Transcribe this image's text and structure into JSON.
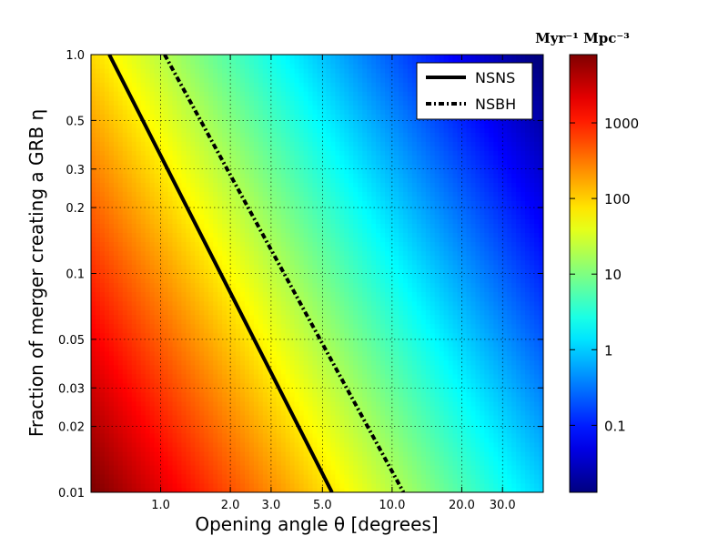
{
  "chart_data": {
    "type": "heatmap",
    "title": "",
    "xlabel": "Opening angle θ [degrees]",
    "ylabel": "Fraction of merger creating a GRB η",
    "x_scale": "log",
    "y_scale": "log",
    "xlim": [
      0.5,
      45
    ],
    "ylim": [
      0.01,
      1.0
    ],
    "x_ticks": [
      {
        "value": 1.0,
        "label": "1.0"
      },
      {
        "value": 2.0,
        "label": "2.0"
      },
      {
        "value": 3.0,
        "label": "3.0"
      },
      {
        "value": 5.0,
        "label": "5.0"
      },
      {
        "value": 10.0,
        "label": "10.0"
      },
      {
        "value": 20.0,
        "label": "20.0"
      },
      {
        "value": 30.0,
        "label": "30.0"
      }
    ],
    "y_ticks": [
      {
        "value": 0.01,
        "label": "0.01"
      },
      {
        "value": 0.02,
        "label": "0.02"
      },
      {
        "value": 0.03,
        "label": "0.03"
      },
      {
        "value": 0.05,
        "label": "0.05"
      },
      {
        "value": 0.1,
        "label": "0.1"
      },
      {
        "value": 0.2,
        "label": "0.2"
      },
      {
        "value": 0.3,
        "label": "0.3"
      },
      {
        "value": 0.5,
        "label": "0.5"
      },
      {
        "value": 1.0,
        "label": "1.0"
      }
    ],
    "grid": true,
    "colormap": "jet",
    "colorbar": {
      "scale": "log",
      "range": [
        0.013,
        8000
      ],
      "unit_label": "Myr⁻¹ Mpc⁻³",
      "ticks": [
        {
          "value": 0.1,
          "label": "0.1"
        },
        {
          "value": 1,
          "label": "1"
        },
        {
          "value": 10,
          "label": "10"
        },
        {
          "value": 100,
          "label": "100"
        },
        {
          "value": 1000,
          "label": "1000"
        }
      ]
    },
    "heatmap_model": {
      "description_of_field": "rate value at (θ, η)",
      "value_at_theta1_eta1": 22,
      "theta_exponent": -2,
      "eta_exponent": -1
    },
    "series": [
      {
        "name": "NSNS",
        "style": "solid",
        "color": "#000000",
        "points": [
          [
            0.6,
            1.0
          ],
          [
            5.5,
            0.01
          ]
        ]
      },
      {
        "name": "NSBH",
        "style": "dashdot",
        "color": "#000000",
        "points": [
          [
            1.04,
            1.0
          ],
          [
            11.2,
            0.01
          ]
        ]
      }
    ],
    "legend_position": "top-right"
  }
}
